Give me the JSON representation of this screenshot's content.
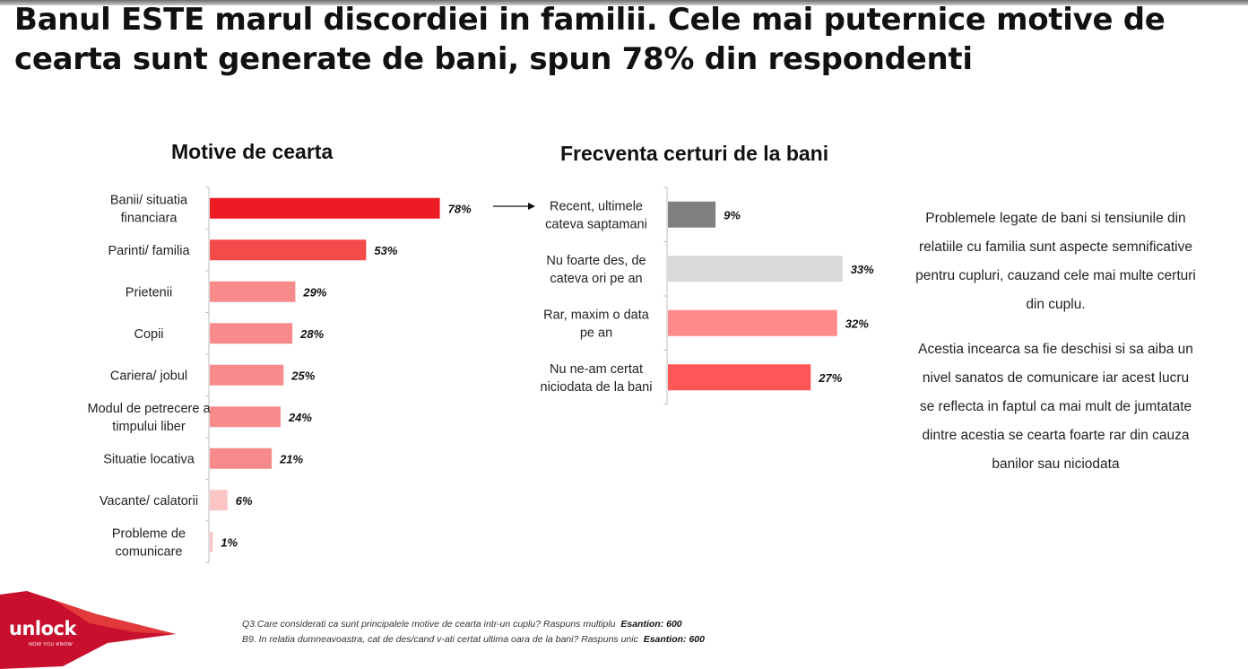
{
  "headline": "Banul ESTE marul discordiei in familii. Cele mai puternice motive de cearta sunt generate de bani, spun 78% din respondenti",
  "chart_data": [
    {
      "type": "bar",
      "orientation": "horizontal",
      "title": "Motive de cearta",
      "categories": [
        [
          "Banii/ situatia",
          "financiara"
        ],
        [
          "Parinti/ familia"
        ],
        [
          "Prietenii"
        ],
        [
          "Copii"
        ],
        [
          "Cariera/ jobul"
        ],
        [
          "Modul de petrecere a",
          "timpului liber"
        ],
        [
          "Situatie locativa"
        ],
        [
          "Vacante/ calatorii"
        ],
        [
          "Probleme de",
          "comunicare"
        ]
      ],
      "values": [
        78,
        53,
        29,
        28,
        25,
        24,
        21,
        6,
        1
      ],
      "labels": [
        "78%",
        "53%",
        "29%",
        "28%",
        "25%",
        "24%",
        "21%",
        "6%",
        "1%"
      ],
      "colors": [
        "#ed1c24",
        "#f44a4a",
        "#f78b8b",
        "#f78b8b",
        "#f78b8b",
        "#f78b8b",
        "#f78b8b",
        "#fbc5c5",
        "#fbc5c5"
      ],
      "xlim": [
        0,
        100
      ]
    },
    {
      "type": "bar",
      "orientation": "horizontal",
      "title": "Frecventa certuri de la bani",
      "categories": [
        [
          "Recent, ultimele",
          "cateva saptamani"
        ],
        [
          "Nu foarte des, de",
          "cateva ori pe an"
        ],
        [
          "Rar, maxim o data",
          "pe an"
        ],
        [
          "Nu ne-am certat",
          "niciodata de la bani"
        ]
      ],
      "values": [
        9,
        33,
        32,
        27
      ],
      "labels": [
        "9%",
        "33%",
        "32%",
        "27%"
      ],
      "colors": [
        "#7f7f7f",
        "#d9d9d9",
        "#ff8a8a",
        "#ff5757"
      ],
      "xlim": [
        0,
        100
      ]
    }
  ],
  "side_text": {
    "p1": "Problemele legate de bani si tensiunile din relatiile cu familia sunt aspecte semnificative pentru cupluri, cauzand cele mai multe certuri din cuplu.",
    "p2": "Acestia incearca sa fie deschisi si sa aiba un nivel sanatos de comunicare iar acest lucru se reflecta in faptul ca mai mult de jumtatate dintre acestia se cearta foarte rar din cauza banilor sau niciodata"
  },
  "footnotes": {
    "f1_text": "Q3.Care considerati ca sunt principalele motive de cearta intr-un cuplu? Raspuns multiplu",
    "f1_sample": "Esantion: 600",
    "f2_text": "B9. In relatia dumneavoastra, cat de des/cand v-ati certat ultima oara de la bani? Raspuns unic",
    "f2_sample": "Esantion: 600"
  },
  "logo": {
    "name": "unlock",
    "tagline": "NOW YOU KNOW"
  },
  "colors": {
    "accent": "#ed1c24",
    "logo_red": "#c8102e"
  }
}
